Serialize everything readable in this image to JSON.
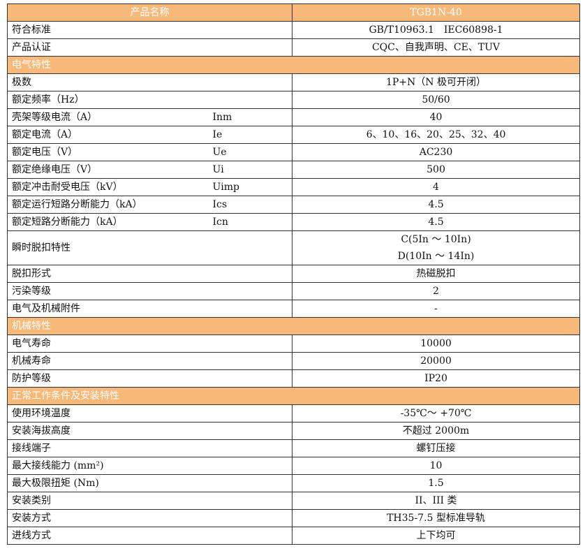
{
  "header": {
    "name_label": "产品名称",
    "model": "TGB1N-40"
  },
  "colors": {
    "header_bg": "#f6b97a",
    "header_text": "#ffffff",
    "border": "#333333"
  },
  "rows": [
    {
      "type": "row",
      "label": "符合标准",
      "symbol": "",
      "value": [
        "GB/T10963.1　IEC60898-1"
      ]
    },
    {
      "type": "row",
      "label": "产品认证",
      "symbol": "",
      "value": [
        "CQC、自我声明、CE、TUV"
      ]
    },
    {
      "type": "section",
      "label": "电气特性"
    },
    {
      "type": "row",
      "label": "极数",
      "symbol": "",
      "value": [
        "1P+N（N 极可开闭）"
      ]
    },
    {
      "type": "row",
      "label": "额定频率（Hz）",
      "symbol": "",
      "value": [
        "50/60"
      ]
    },
    {
      "type": "row",
      "label": "壳架等级电流（A）",
      "symbol": "Inm",
      "value": [
        "40"
      ]
    },
    {
      "type": "row",
      "label": "额定电流（A）",
      "symbol": "Ie",
      "value": [
        "6、10、16、20、25、32、40"
      ]
    },
    {
      "type": "row",
      "label": "额定电压（V）",
      "symbol": "Ue",
      "value": [
        "AC230"
      ]
    },
    {
      "type": "row",
      "label": "额定绝缘电压（V）",
      "symbol": "Ui",
      "value": [
        "500"
      ]
    },
    {
      "type": "row",
      "label": "额定冲击耐受电压（kV）",
      "symbol": "Uimp",
      "value": [
        "4"
      ]
    },
    {
      "type": "row",
      "label": "额定运行短路分断能力（kA）",
      "symbol": "Ics",
      "value": [
        "4.5"
      ]
    },
    {
      "type": "row",
      "label": "额定短路分断能力（kA）",
      "symbol": "Icn",
      "value": [
        "4.5"
      ]
    },
    {
      "type": "row",
      "label": "瞬时脱扣特性",
      "symbol": "",
      "value": [
        "C(5In ～ 10In)",
        "D(10In ～ 14In)"
      ]
    },
    {
      "type": "row",
      "label": "脱扣形式",
      "symbol": "",
      "value": [
        "热磁脱扣"
      ]
    },
    {
      "type": "row",
      "label": "污染等级",
      "symbol": "",
      "value": [
        "2"
      ]
    },
    {
      "type": "row",
      "label": "电气及机械附件",
      "symbol": "",
      "value": [
        "-"
      ]
    },
    {
      "type": "section",
      "label": "机械特性"
    },
    {
      "type": "row",
      "label": "电气寿命",
      "symbol": "",
      "value": [
        "10000"
      ]
    },
    {
      "type": "row",
      "label": "机械寿命",
      "symbol": "",
      "value": [
        "20000"
      ]
    },
    {
      "type": "row",
      "label": "防护等级",
      "symbol": "",
      "value": [
        "IP20"
      ]
    },
    {
      "type": "section",
      "label": "正常工作条件及安装特性"
    },
    {
      "type": "row",
      "label": "使用环境温度",
      "symbol": "",
      "value": [
        "-35℃～ +70℃"
      ]
    },
    {
      "type": "row",
      "label": "安装海拔高度",
      "symbol": "",
      "value": [
        "不超过 2000m"
      ]
    },
    {
      "type": "row",
      "label": "接线端子",
      "symbol": "",
      "value": [
        "螺钉压接"
      ]
    },
    {
      "type": "row",
      "label": "最大接线能力 (mm²)",
      "symbol": "",
      "value": [
        "10"
      ]
    },
    {
      "type": "row",
      "label": "最大极限扭矩 (Nm)",
      "symbol": "",
      "value": [
        "1.5"
      ]
    },
    {
      "type": "row",
      "label": "安装类别",
      "symbol": "",
      "value": [
        "II、III 类"
      ]
    },
    {
      "type": "row",
      "label": "安装方式",
      "symbol": "",
      "value": [
        "TH35-7.5 型标准导轨"
      ]
    },
    {
      "type": "row",
      "label": "进线方式",
      "symbol": "",
      "value": [
        "上下均可"
      ]
    }
  ]
}
